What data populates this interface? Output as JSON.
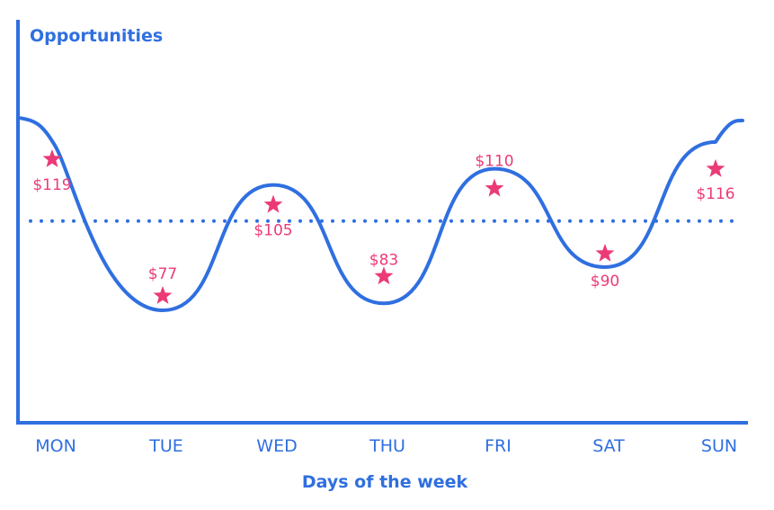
{
  "chart_data": {
    "type": "line",
    "ylabel": "Opportunities",
    "xlabel": "Days of the week",
    "categories": [
      "MON",
      "TUE",
      "WED",
      "THU",
      "FRI",
      "SAT",
      "SUN"
    ],
    "series": [
      {
        "values": [
          119,
          77,
          105,
          83,
          110,
          90,
          116
        ],
        "labels": [
          "$119",
          "$77",
          "$105",
          "$83",
          "$110",
          "$90",
          "$116"
        ],
        "marker": "star"
      }
    ],
    "reference_line": {
      "style": "dotted"
    },
    "colors": {
      "axis": "#2f6fe0",
      "line": "#2f6fe0",
      "marker": "#ec3a78",
      "text": "#2f6fe0"
    },
    "grid": false,
    "legend": "none"
  }
}
